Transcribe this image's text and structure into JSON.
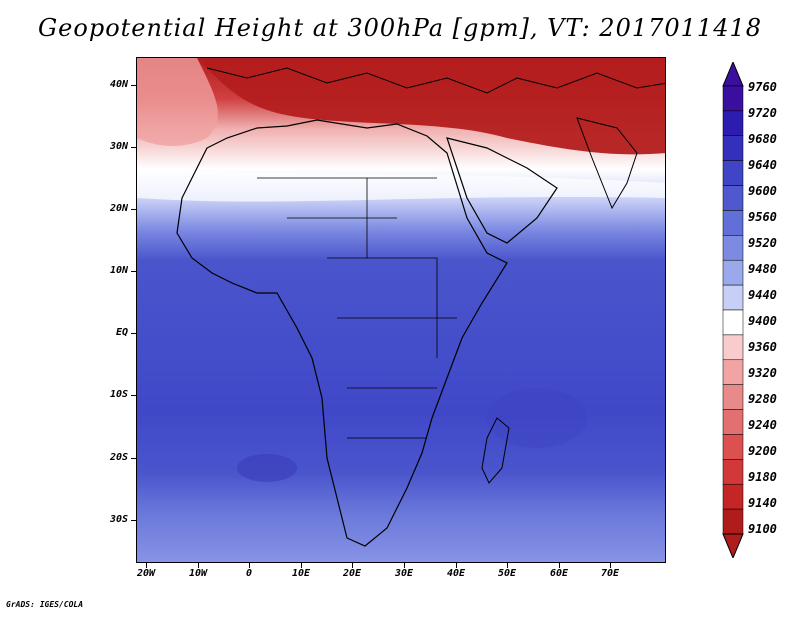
{
  "title": "Geopotential Height at 300hPa [gpm], VT: 2017011418",
  "credit": "GrADS: IGES/COLA",
  "lat_labels": [
    "40N",
    "30N",
    "20N",
    "10N",
    "EQ",
    "10S",
    "20S",
    "30S"
  ],
  "lon_labels": [
    "20W",
    "10W",
    "0",
    "10E",
    "20E",
    "30E",
    "40E",
    "50E",
    "60E",
    "70E"
  ],
  "colorbar": {
    "levels": [
      "9760",
      "9720",
      "9680",
      "9640",
      "9600",
      "9560",
      "9520",
      "9480",
      "9440",
      "9400",
      "9360",
      "9320",
      "9280",
      "9240",
      "9200",
      "9180",
      "9140",
      "9100"
    ],
    "colors": [
      "#3a0fa0",
      "#2c1cb0",
      "#3430bc",
      "#3f45c6",
      "#4f58cf",
      "#6070d8",
      "#7c8ae2",
      "#9aa8ec",
      "#c8cff6",
      "#ffffff",
      "#f8cccc",
      "#f2a4a4",
      "#e88a8a",
      "#e27070",
      "#dc5050",
      "#d23838",
      "#c42626",
      "#b01c1c"
    ]
  },
  "chart_data": {
    "type": "heatmap",
    "variable": "Geopotential Height at 300hPa",
    "units": "gpm",
    "valid_time": "2017011418",
    "lon_range": [
      -23,
      80
    ],
    "lat_range": [
      -37,
      45
    ],
    "contour_levels": [
      9100,
      9140,
      9180,
      9200,
      9240,
      9280,
      9320,
      9360,
      9400,
      9440,
      9480,
      9520,
      9560,
      9600,
      9640,
      9680,
      9720,
      9760
    ]
  }
}
